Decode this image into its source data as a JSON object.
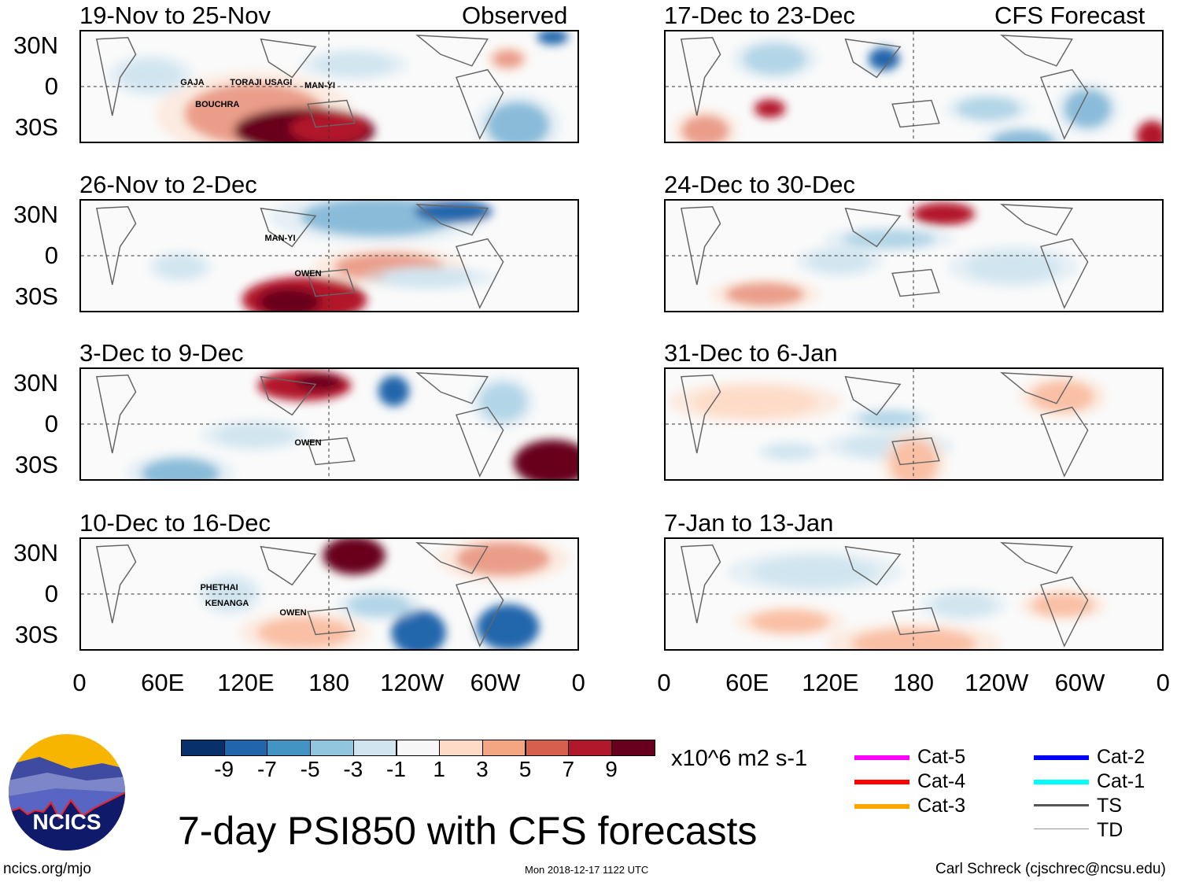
{
  "left_header": "Observed",
  "right_header": "CFS Forecast",
  "left_panels": [
    {
      "title": "19-Nov to 25-Nov",
      "storms": [
        "GAJA",
        "TORAJI",
        "USAGI",
        "MAN-YI",
        "BOUCHRA"
      ]
    },
    {
      "title": "26-Nov to 2-Dec",
      "storms": [
        "MAN-YI",
        "OWEN"
      ]
    },
    {
      "title": "3-Dec to 9-Dec",
      "storms": [
        "OWEN"
      ]
    },
    {
      "title": "10-Dec to 16-Dec",
      "storms": [
        "PHETHAI",
        "KENANGA",
        "OWEN"
      ]
    }
  ],
  "right_panels": [
    {
      "title": "17-Dec to 23-Dec"
    },
    {
      "title": "24-Dec to 30-Dec"
    },
    {
      "title": "31-Dec to 6-Jan"
    },
    {
      "title": "7-Jan to 13-Jan"
    }
  ],
  "lat_labels": [
    "30N",
    "0",
    "30S"
  ],
  "lon_labels": [
    "0",
    "60E",
    "120E",
    "180",
    "120W",
    "60W",
    "0"
  ],
  "colorbar": {
    "labels": [
      "-9",
      "-7",
      "-5",
      "-3",
      "-1",
      "1",
      "3",
      "5",
      "7",
      "9"
    ],
    "colors": [
      "#08306b",
      "#2166ac",
      "#4393c3",
      "#92c5de",
      "#d1e5f0",
      "#f7f7f7",
      "#fddbc7",
      "#f4a582",
      "#d6604d",
      "#b2182b",
      "#67001f"
    ],
    "units": "x10^6 m2 s-1"
  },
  "title": "7-day PSI850 with CFS forecasts",
  "legend": [
    {
      "label": "Cat-5",
      "color": "#ff00ff"
    },
    {
      "label": "Cat-4",
      "color": "#ff0000"
    },
    {
      "label": "Cat-3",
      "color": "#ffa500"
    },
    {
      "label": "Cat-2",
      "color": "#0000ff"
    },
    {
      "label": "Cat-1",
      "color": "#00ffff"
    },
    {
      "label": "TS",
      "color": "#555555"
    },
    {
      "label": "TD",
      "color": "#999999"
    }
  ],
  "logo_text": "NCICS",
  "url": "ncics.org/mjo",
  "timestamp": "Mon 2018-12-17 1122 UTC",
  "credit": "Carl Schreck (cjschrec@ncsu.edu)"
}
